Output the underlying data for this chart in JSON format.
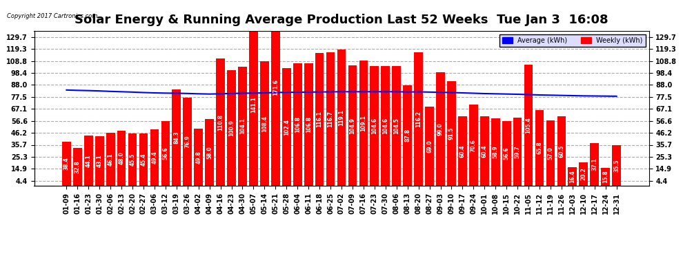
{
  "title": "Solar Energy & Running Average Production Last 52 Weeks  Tue Jan 3  16:08",
  "copyright": "Copyright 2017 Cartronics.com",
  "bar_color": "#FF0000",
  "line_color": "#0000FF",
  "background_color": "#FFFFFF",
  "grid_color": "#AAAAAA",
  "legend_avg_color": "#0000FF",
  "legend_weekly_color": "#FF0000",
  "dates": [
    "01-09",
    "01-16",
    "01-23",
    "01-30",
    "02-06",
    "02-13",
    "02-20",
    "02-27",
    "03-06",
    "03-12",
    "03-19",
    "03-26",
    "04-02",
    "04-09",
    "04-16",
    "04-23",
    "04-30",
    "05-07",
    "05-14",
    "05-21",
    "05-28",
    "06-04",
    "06-11",
    "06-18",
    "06-25",
    "07-02",
    "07-09",
    "07-16",
    "07-23",
    "07-30",
    "08-06",
    "08-13",
    "08-20",
    "08-27",
    "09-03",
    "09-10",
    "09-17",
    "09-24",
    "10-01",
    "10-08",
    "10-15",
    "10-22",
    "11-05",
    "11-12",
    "11-19",
    "11-26",
    "12-03",
    "12-10",
    "12-17",
    "12-24",
    "12-31"
  ],
  "weekly_values": [
    38.4,
    32.8,
    44.1,
    43.1,
    46.1,
    48.0,
    45.5,
    45.4,
    49.4,
    56.6,
    84.3,
    76.9,
    49.8,
    58.0,
    110.8,
    100.9,
    104.1,
    141.1,
    108.4,
    171.6,
    102.4,
    106.8,
    106.8,
    116.1,
    116.7,
    119.1,
    104.9,
    109.1,
    104.6,
    104.6,
    104.5,
    87.8,
    116.2,
    69.0,
    99.0,
    91.5,
    60.4,
    70.6,
    60.4,
    58.9,
    56.6,
    59.7,
    105.4,
    65.8,
    57.0,
    60.5,
    16.4,
    20.2,
    37.1,
    15.8,
    35.5
  ],
  "running_avg": [
    83.5,
    83.2,
    83.0,
    82.7,
    82.3,
    82.0,
    81.7,
    81.3,
    81.0,
    80.8,
    80.7,
    80.5,
    80.2,
    80.0,
    80.2,
    80.5,
    80.7,
    80.8,
    81.0,
    81.3,
    81.5,
    81.6,
    81.7,
    81.8,
    81.9,
    82.0,
    82.0,
    82.0,
    82.0,
    82.0,
    82.0,
    81.8,
    81.9,
    81.7,
    81.5,
    81.3,
    81.0,
    80.7,
    80.4,
    80.2,
    80.0,
    79.8,
    79.5,
    79.2,
    79.0,
    78.8,
    78.6,
    78.4,
    78.3,
    78.2,
    78.1
  ],
  "yticks": [
    4.4,
    14.9,
    25.3,
    35.7,
    46.2,
    56.6,
    67.1,
    77.5,
    88.0,
    98.4,
    108.8,
    119.3,
    129.7
  ],
  "ylim_min": 0,
  "ylim_max": 135,
  "title_fontsize": 13,
  "tick_fontsize": 7,
  "bar_label_fontsize": 5.5
}
